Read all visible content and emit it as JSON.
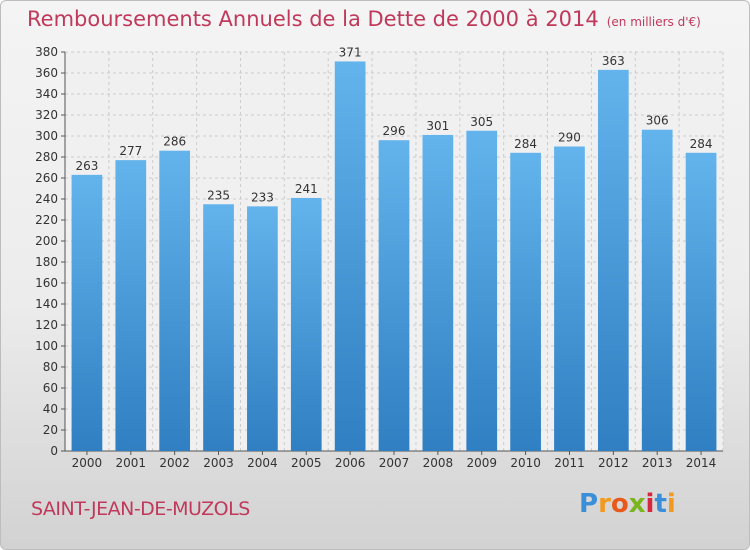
{
  "title": "Remboursements Annuels de la Dette de 2000 à 2014",
  "subtitle": "(en milliers d'€)",
  "city": "SAINT-JEAN-DE-MUZOLS",
  "logo": {
    "letters": [
      "P",
      "r",
      "o",
      "x",
      "i",
      "t",
      "i"
    ],
    "colors": [
      "#3b8fd9",
      "#f29a1f",
      "#e85a1b",
      "#7ab51d",
      "#d7263d",
      "#3b8fd9",
      "#f29a1f"
    ]
  },
  "colors": {
    "bar_top": "#63b3ec",
    "bar_bottom": "#2f7fc2",
    "title": "#c0395b"
  },
  "chart_data": {
    "type": "bar",
    "title": "Remboursements Annuels de la Dette de 2000 à 2014",
    "subtitle": "(en milliers d'€)",
    "categories": [
      "2000",
      "2001",
      "2002",
      "2003",
      "2004",
      "2005",
      "2006",
      "2007",
      "2008",
      "2009",
      "2010",
      "2011",
      "2012",
      "2013",
      "2014"
    ],
    "values": [
      263,
      277,
      286,
      235,
      233,
      241,
      371,
      296,
      301,
      305,
      284,
      290,
      363,
      306,
      284
    ],
    "ylim": [
      0,
      380
    ],
    "ytick_step": 20,
    "grid": true,
    "xlabel": "",
    "ylabel": ""
  }
}
